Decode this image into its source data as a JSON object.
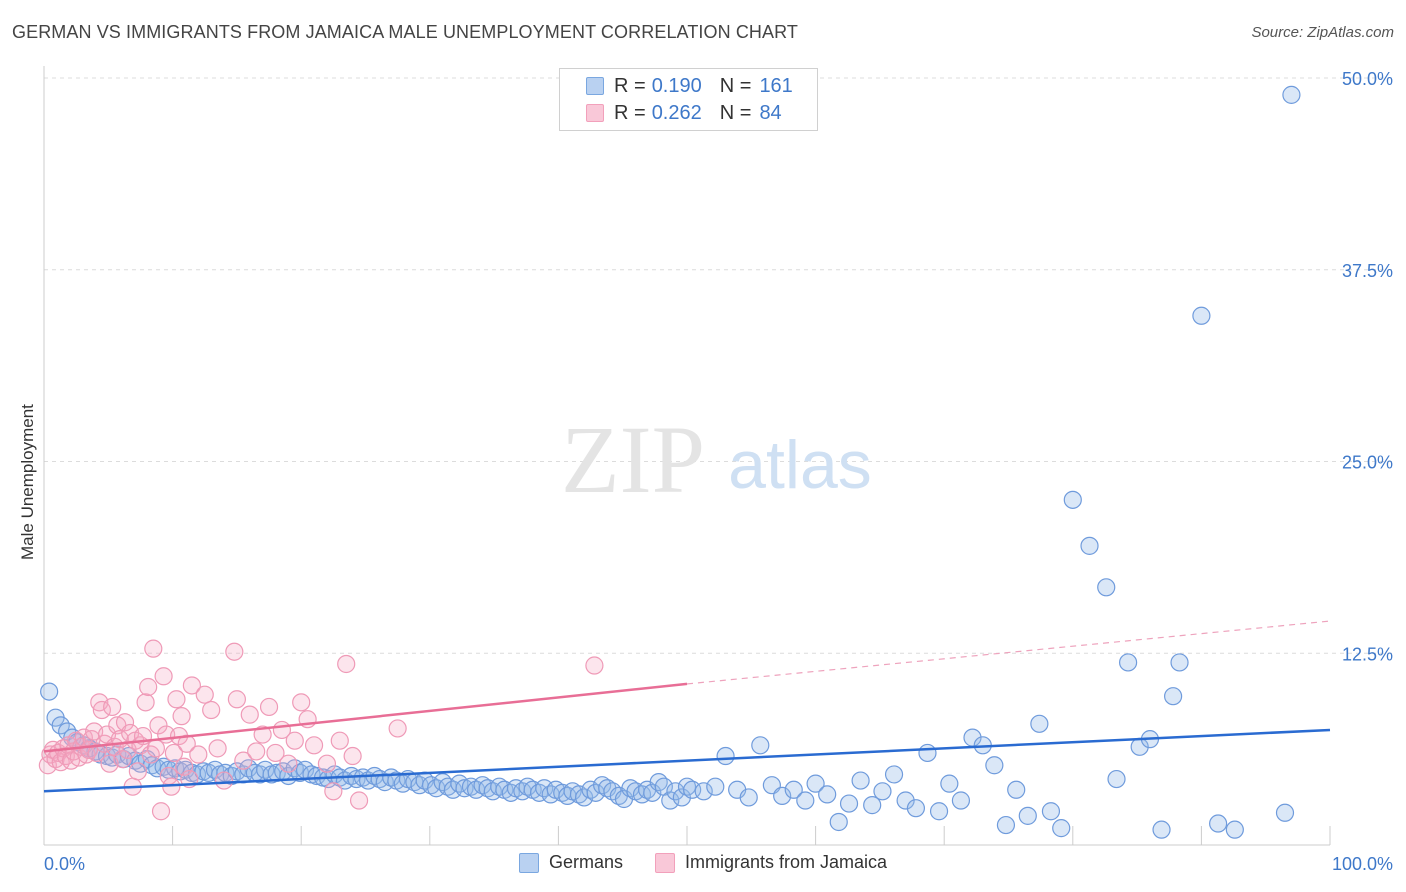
{
  "header": {
    "title": "GERMAN VS IMMIGRANTS FROM JAMAICA MALE UNEMPLOYMENT CORRELATION CHART",
    "source": "Source: ZipAtlas.com"
  },
  "watermark": {
    "zip": "ZIP",
    "atlas": "atlas"
  },
  "legend": {
    "rows": [
      {
        "r_label": "R =",
        "r_value": "0.190",
        "n_label": "N =",
        "n_value": "161",
        "color": "#7aa7e0"
      },
      {
        "r_label": "R =",
        "r_value": "0.262",
        "n_label": "N =",
        "n_value": "84",
        "color": "#f2a0bb"
      }
    ]
  },
  "colors": {
    "blue": "#5b8fd6",
    "blue_line": "#2a6bd1",
    "pink": "#ef8fae",
    "pink_line": "#e86e96",
    "tick_text": "#3e78c9"
  },
  "chart_data": {
    "type": "scatter",
    "title": "GERMAN VS IMMIGRANTS FROM JAMAICA MALE UNEMPLOYMENT CORRELATION CHART",
    "xlabel": "",
    "ylabel": "Male Unemployment",
    "xlim": [
      0,
      100
    ],
    "ylim": [
      0,
      50
    ],
    "x_tick_labels": [
      "0.0%",
      "100.0%"
    ],
    "y_ticks": [
      12.5,
      25.0,
      37.5,
      50.0
    ],
    "y_tick_labels": [
      "12.5%",
      "25.0%",
      "37.5%",
      "50.0%"
    ],
    "grid": true,
    "legend_position": "top-center",
    "series": [
      {
        "name": "Germans",
        "color": "#5b8fd6",
        "trend": {
          "x": [
            0,
            100
          ],
          "y": [
            3.5,
            7.5
          ],
          "style": "solid"
        },
        "points": [
          [
            0.4,
            10.0
          ],
          [
            0.9,
            8.3
          ],
          [
            1.3,
            7.8
          ],
          [
            1.8,
            7.4
          ],
          [
            2.2,
            7.0
          ],
          [
            2.6,
            6.7
          ],
          [
            3.1,
            6.5
          ],
          [
            3.5,
            6.3
          ],
          [
            4.0,
            6.1
          ],
          [
            4.4,
            5.9
          ],
          [
            4.9,
            5.8
          ],
          [
            5.3,
            5.7
          ],
          [
            5.7,
            5.9
          ],
          [
            6.2,
            5.6
          ],
          [
            6.6,
            5.8
          ],
          [
            7.1,
            5.5
          ],
          [
            7.5,
            5.3
          ],
          [
            8.0,
            5.6
          ],
          [
            8.4,
            5.2
          ],
          [
            8.8,
            5.0
          ],
          [
            9.3,
            5.1
          ],
          [
            9.7,
            4.9
          ],
          [
            10.2,
            5.0
          ],
          [
            10.6,
            4.8
          ],
          [
            11.0,
            4.9
          ],
          [
            11.5,
            4.7
          ],
          [
            11.9,
            4.6
          ],
          [
            12.4,
            4.8
          ],
          [
            12.8,
            4.7
          ],
          [
            13.3,
            4.9
          ],
          [
            13.7,
            4.6
          ],
          [
            14.1,
            4.7
          ],
          [
            14.6,
            4.5
          ],
          [
            15.0,
            4.8
          ],
          [
            15.5,
            4.6
          ],
          [
            15.9,
            5.0
          ],
          [
            16.4,
            4.7
          ],
          [
            16.8,
            4.6
          ],
          [
            17.2,
            4.9
          ],
          [
            17.7,
            4.6
          ],
          [
            18.1,
            4.7
          ],
          [
            18.6,
            4.8
          ],
          [
            19.0,
            4.5
          ],
          [
            19.5,
            5.0
          ],
          [
            19.9,
            4.7
          ],
          [
            20.3,
            4.9
          ],
          [
            20.8,
            4.6
          ],
          [
            21.2,
            4.5
          ],
          [
            21.7,
            4.4
          ],
          [
            22.1,
            4.3
          ],
          [
            22.6,
            4.6
          ],
          [
            23.0,
            4.4
          ],
          [
            23.4,
            4.2
          ],
          [
            23.9,
            4.5
          ],
          [
            24.3,
            4.3
          ],
          [
            24.8,
            4.4
          ],
          [
            25.2,
            4.2
          ],
          [
            25.7,
            4.5
          ],
          [
            26.1,
            4.3
          ],
          [
            26.5,
            4.1
          ],
          [
            27.0,
            4.4
          ],
          [
            27.4,
            4.2
          ],
          [
            27.9,
            4.0
          ],
          [
            28.3,
            4.3
          ],
          [
            28.8,
            4.1
          ],
          [
            29.2,
            3.9
          ],
          [
            29.6,
            4.2
          ],
          [
            30.1,
            3.9
          ],
          [
            30.5,
            3.7
          ],
          [
            31.0,
            4.1
          ],
          [
            31.4,
            3.8
          ],
          [
            31.8,
            3.6
          ],
          [
            32.3,
            4.0
          ],
          [
            32.7,
            3.7
          ],
          [
            33.2,
            3.8
          ],
          [
            33.6,
            3.6
          ],
          [
            34.1,
            3.9
          ],
          [
            34.5,
            3.7
          ],
          [
            34.9,
            3.5
          ],
          [
            35.4,
            3.8
          ],
          [
            35.8,
            3.6
          ],
          [
            36.3,
            3.4
          ],
          [
            36.7,
            3.7
          ],
          [
            37.2,
            3.5
          ],
          [
            37.6,
            3.8
          ],
          [
            38.0,
            3.6
          ],
          [
            38.5,
            3.4
          ],
          [
            38.9,
            3.7
          ],
          [
            39.4,
            3.3
          ],
          [
            39.8,
            3.6
          ],
          [
            40.3,
            3.4
          ],
          [
            40.7,
            3.2
          ],
          [
            41.1,
            3.5
          ],
          [
            41.6,
            3.3
          ],
          [
            42.0,
            3.1
          ],
          [
            42.5,
            3.6
          ],
          [
            42.9,
            3.4
          ],
          [
            43.4,
            3.9
          ],
          [
            43.8,
            3.7
          ],
          [
            44.2,
            3.5
          ],
          [
            44.7,
            3.2
          ],
          [
            45.1,
            3.0
          ],
          [
            45.6,
            3.7
          ],
          [
            46.0,
            3.5
          ],
          [
            46.5,
            3.3
          ],
          [
            46.9,
            3.6
          ],
          [
            47.3,
            3.4
          ],
          [
            47.8,
            4.1
          ],
          [
            48.2,
            3.8
          ],
          [
            48.7,
            2.9
          ],
          [
            49.1,
            3.5
          ],
          [
            49.6,
            3.1
          ],
          [
            50.0,
            3.8
          ],
          [
            50.4,
            3.6
          ],
          [
            51.3,
            3.5
          ],
          [
            52.2,
            3.8
          ],
          [
            53.0,
            5.8
          ],
          [
            53.9,
            3.6
          ],
          [
            54.8,
            3.1
          ],
          [
            55.7,
            6.5
          ],
          [
            56.6,
            3.9
          ],
          [
            57.4,
            3.2
          ],
          [
            58.3,
            3.6
          ],
          [
            59.2,
            2.9
          ],
          [
            60.0,
            4.0
          ],
          [
            60.9,
            3.3
          ],
          [
            61.8,
            1.5
          ],
          [
            62.6,
            2.7
          ],
          [
            63.5,
            4.2
          ],
          [
            64.4,
            2.6
          ],
          [
            65.2,
            3.5
          ],
          [
            66.1,
            4.6
          ],
          [
            67.0,
            2.9
          ],
          [
            67.8,
            2.4
          ],
          [
            68.7,
            6.0
          ],
          [
            69.6,
            2.2
          ],
          [
            70.4,
            4.0
          ],
          [
            71.3,
            2.9
          ],
          [
            72.2,
            7.0
          ],
          [
            73.0,
            6.5
          ],
          [
            73.9,
            5.2
          ],
          [
            74.8,
            1.3
          ],
          [
            75.6,
            3.6
          ],
          [
            76.5,
            1.9
          ],
          [
            77.4,
            7.9
          ],
          [
            78.3,
            2.2
          ],
          [
            79.1,
            1.1
          ],
          [
            80.0,
            22.5
          ],
          [
            81.3,
            19.5
          ],
          [
            82.6,
            16.8
          ],
          [
            83.4,
            4.3
          ],
          [
            84.3,
            11.9
          ],
          [
            85.2,
            6.4
          ],
          [
            86.0,
            6.9
          ],
          [
            86.9,
            1.0
          ],
          [
            87.8,
            9.7
          ],
          [
            88.3,
            11.9
          ],
          [
            90.0,
            34.5
          ],
          [
            91.3,
            1.4
          ],
          [
            92.6,
            1.0
          ],
          [
            96.5,
            2.1
          ],
          [
            97.0,
            48.9
          ]
        ]
      },
      {
        "name": "Immigrants from Jamaica",
        "color": "#ef8fae",
        "trend": {
          "x": [
            0,
            50
          ],
          "y": [
            6.1,
            10.5
          ],
          "style": "solid",
          "dashed_extension": {
            "x": [
              50,
              100
            ],
            "y": [
              10.5,
              14.6
            ]
          }
        },
        "points": [
          [
            0.3,
            5.2
          ],
          [
            0.5,
            5.9
          ],
          [
            0.7,
            6.2
          ],
          [
            0.9,
            5.6
          ],
          [
            1.1,
            6.0
          ],
          [
            1.3,
            5.4
          ],
          [
            1.5,
            6.3
          ],
          [
            1.7,
            5.8
          ],
          [
            1.9,
            6.5
          ],
          [
            2.1,
            5.5
          ],
          [
            2.3,
            6.1
          ],
          [
            2.5,
            6.8
          ],
          [
            2.7,
            5.7
          ],
          [
            2.9,
            6.4
          ],
          [
            3.1,
            7.0
          ],
          [
            3.3,
            5.9
          ],
          [
            3.5,
            6.2
          ],
          [
            3.7,
            6.9
          ],
          [
            3.9,
            7.4
          ],
          [
            4.1,
            6.0
          ],
          [
            4.3,
            9.3
          ],
          [
            4.5,
            8.8
          ],
          [
            4.7,
            6.6
          ],
          [
            4.9,
            7.2
          ],
          [
            5.1,
            5.3
          ],
          [
            5.3,
            9.0
          ],
          [
            5.5,
            6.4
          ],
          [
            5.7,
            7.8
          ],
          [
            5.9,
            6.9
          ],
          [
            6.1,
            5.6
          ],
          [
            6.3,
            8.0
          ],
          [
            6.5,
            6.2
          ],
          [
            6.7,
            7.3
          ],
          [
            6.9,
            3.8
          ],
          [
            7.1,
            6.8
          ],
          [
            7.3,
            4.8
          ],
          [
            7.5,
            6.5
          ],
          [
            7.7,
            7.1
          ],
          [
            7.9,
            9.3
          ],
          [
            8.1,
            10.3
          ],
          [
            8.3,
            5.9
          ],
          [
            8.5,
            12.8
          ],
          [
            8.7,
            6.3
          ],
          [
            8.9,
            7.8
          ],
          [
            9.1,
            2.2
          ],
          [
            9.3,
            11.0
          ],
          [
            9.5,
            7.2
          ],
          [
            9.7,
            4.5
          ],
          [
            9.9,
            3.8
          ],
          [
            10.1,
            6.0
          ],
          [
            10.3,
            9.5
          ],
          [
            10.5,
            7.1
          ],
          [
            10.7,
            8.4
          ],
          [
            10.9,
            5.1
          ],
          [
            11.1,
            6.6
          ],
          [
            11.3,
            4.3
          ],
          [
            11.5,
            10.4
          ],
          [
            12.0,
            5.9
          ],
          [
            12.5,
            9.8
          ],
          [
            13.0,
            8.8
          ],
          [
            13.5,
            6.3
          ],
          [
            14.0,
            4.2
          ],
          [
            14.8,
            12.6
          ],
          [
            15.0,
            9.5
          ],
          [
            15.5,
            5.5
          ],
          [
            16.0,
            8.5
          ],
          [
            16.5,
            6.1
          ],
          [
            17.0,
            7.2
          ],
          [
            17.5,
            9.0
          ],
          [
            18.0,
            6.0
          ],
          [
            18.5,
            7.5
          ],
          [
            19.0,
            5.3
          ],
          [
            19.5,
            6.8
          ],
          [
            20.0,
            9.3
          ],
          [
            20.5,
            8.2
          ],
          [
            21.0,
            6.5
          ],
          [
            22.0,
            5.3
          ],
          [
            22.5,
            3.5
          ],
          [
            23.0,
            6.8
          ],
          [
            23.5,
            11.8
          ],
          [
            24.0,
            5.8
          ],
          [
            24.5,
            2.9
          ],
          [
            27.5,
            7.6
          ],
          [
            42.8,
            11.7
          ]
        ]
      }
    ]
  },
  "bottom_legend": {
    "items": [
      "Germans",
      "Immigrants from Jamaica"
    ]
  }
}
